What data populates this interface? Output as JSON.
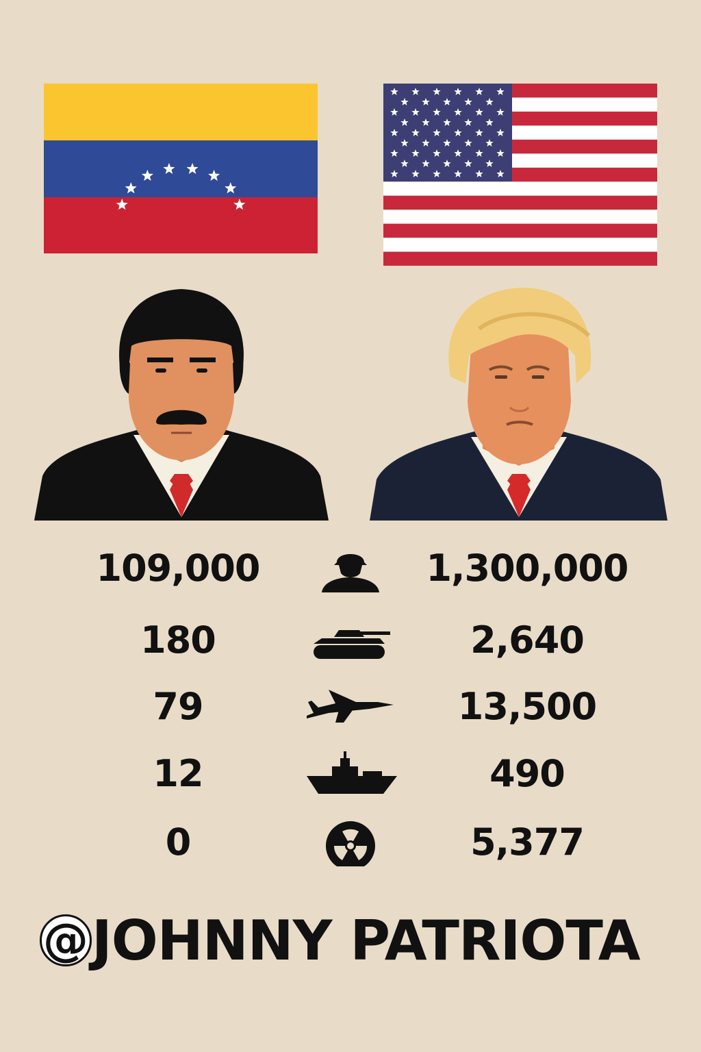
{
  "flags": {
    "left": {
      "name": "venezuela-flag",
      "colors": {
        "yellow": "#fbc52f",
        "blue": "#2f4a96",
        "red": "#cc2233",
        "stars": "#ffffff"
      }
    },
    "right": {
      "name": "usa-flag",
      "colors": {
        "red": "#c8283c",
        "white": "#ffffff",
        "canton": "#3d3e74"
      }
    }
  },
  "portraits": {
    "left": {
      "icon": "leader-portrait-left",
      "suit": "#111111",
      "skin": "#e0915f",
      "hair": "#111111",
      "tie": "#d02a2a"
    },
    "right": {
      "icon": "leader-portrait-right",
      "suit": "#1c2236",
      "skin": "#e6905e",
      "hair": "#f1cc7a",
      "tie": "#d62a2a"
    }
  },
  "stats": [
    {
      "icon": "soldier-icon",
      "left": "109,000",
      "right": "1,300,000"
    },
    {
      "icon": "tank-icon",
      "left": "180",
      "right": "2,640"
    },
    {
      "icon": "jet-icon",
      "left": "79",
      "right": "13,500"
    },
    {
      "icon": "warship-icon",
      "left": "12",
      "right": "490"
    },
    {
      "icon": "nuclear-icon",
      "left": "0",
      "right": "5,377"
    }
  ],
  "handle": {
    "at": "@",
    "text": "JOHNNY PATRIOTA"
  },
  "colors": {
    "background": "#e8dcc8",
    "text": "#111111"
  }
}
